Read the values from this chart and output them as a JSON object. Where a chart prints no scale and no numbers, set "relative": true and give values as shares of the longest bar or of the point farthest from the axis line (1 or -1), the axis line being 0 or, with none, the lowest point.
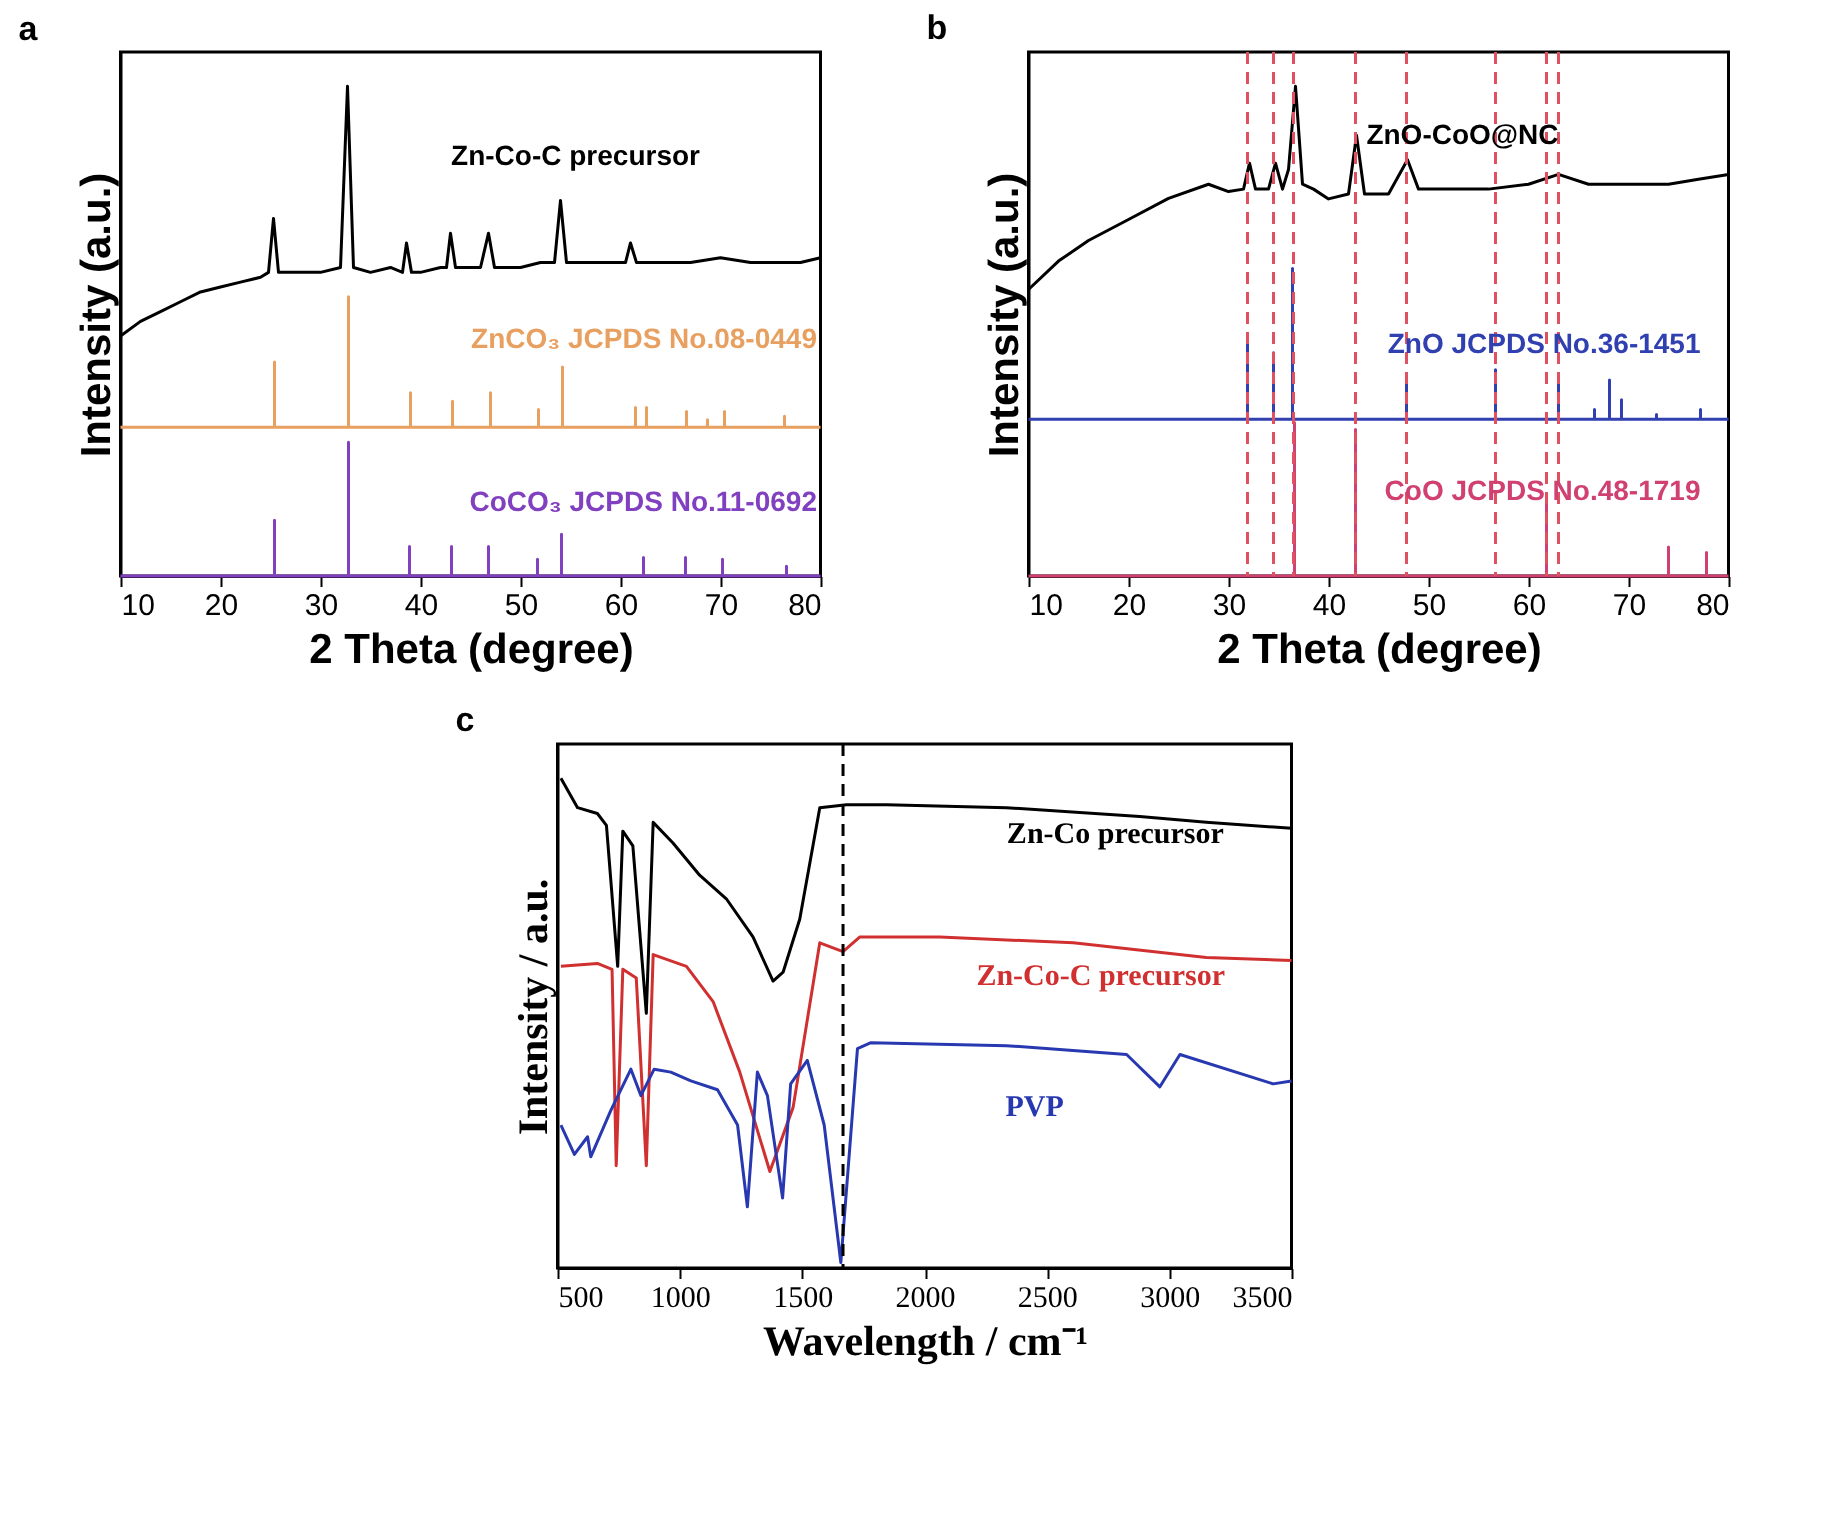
{
  "chart_data": [
    {
      "type": "line",
      "title": "a",
      "xlabel": "2 Theta (degree)",
      "ylabel": "Intensity (a.u.)",
      "relative": true,
      "xlim": [
        10,
        80
      ],
      "xticks": [
        10,
        20,
        30,
        40,
        50,
        60,
        70,
        80
      ],
      "series": [
        {
          "name": "Zn-Co-C precursor",
          "color": "#000000",
          "x": [
            10,
            12,
            14,
            16,
            18,
            20,
            22,
            24,
            24.8,
            25.3,
            25.8,
            28,
            30,
            32,
            32.7,
            33.3,
            35,
            37,
            38.2,
            38.6,
            39.1,
            40,
            42,
            42.6,
            43,
            43.5,
            46,
            46.8,
            47.4,
            50,
            52,
            53.4,
            54,
            54.6,
            58,
            60.5,
            61,
            61.6,
            64,
            67,
            70,
            73,
            76,
            78,
            80
          ],
          "values": [
            0.49,
            0.52,
            0.54,
            0.56,
            0.58,
            0.59,
            0.6,
            0.61,
            0.62,
            0.73,
            0.62,
            0.62,
            0.62,
            0.63,
            1.0,
            0.63,
            0.62,
            0.63,
            0.62,
            0.68,
            0.62,
            0.62,
            0.63,
            0.63,
            0.7,
            0.63,
            0.63,
            0.7,
            0.63,
            0.63,
            0.64,
            0.64,
            0.767,
            0.64,
            0.64,
            0.64,
            0.68,
            0.64,
            0.64,
            0.64,
            0.65,
            0.64,
            0.64,
            0.64,
            0.65
          ]
        },
        {
          "name": "ZnCO₃ JCPDS No.08-0449",
          "color": "#e8a060",
          "x": [
            10,
            25.4,
            25.4,
            25.4,
            32.8,
            32.8,
            32.8,
            39.0,
            39.0,
            39.0,
            43.2,
            43.2,
            43.2,
            47.0,
            47.0,
            47.0,
            51.8,
            51.8,
            51.8,
            54.2,
            54.2,
            54.2,
            61.5,
            61.5,
            61.5,
            62.6,
            62.6,
            62.6,
            66.6,
            66.6,
            66.6,
            68.7,
            68.7,
            68.7,
            70.4,
            70.4,
            70.4,
            76.4,
            76.4,
            76.4,
            80
          ],
          "values": [
            0.304,
            0.304,
            0.437,
            0.304,
            0.304,
            0.57,
            0.304,
            0.304,
            0.374,
            0.304,
            0.304,
            0.357,
            0.304,
            0.304,
            0.374,
            0.304,
            0.304,
            0.34,
            0.304,
            0.304,
            0.427,
            0.304,
            0.304,
            0.344,
            0.304,
            0.304,
            0.344,
            0.304,
            0.304,
            0.336,
            0.304,
            0.304,
            0.319,
            0.304,
            0.304,
            0.336,
            0.304,
            0.304,
            0.326,
            0.304,
            0.304
          ]
        },
        {
          "name": "CoCO₃ JCPDS No.11-0692",
          "color": "#8040c0",
          "x": [
            10,
            25.4,
            25.4,
            25.4,
            32.8,
            32.8,
            32.8,
            38.9,
            38.9,
            38.9,
            43.1,
            43.1,
            43.1,
            46.8,
            46.8,
            46.8,
            51.7,
            51.7,
            51.7,
            54.1,
            54.1,
            54.1,
            62.3,
            62.3,
            62.3,
            66.5,
            66.5,
            66.5,
            70.2,
            70.2,
            70.2,
            76.6,
            76.6,
            76.6,
            80
          ],
          "values": [
            0,
            0,
            0.114,
            0,
            0,
            0.273,
            0,
            0,
            0.06,
            0,
            0,
            0.06,
            0,
            0,
            0.06,
            0,
            0,
            0.034,
            0,
            0,
            0.085,
            0,
            0,
            0.038,
            0,
            0,
            0.038,
            0,
            0,
            0.034,
            0,
            0,
            0.02,
            0,
            0
          ]
        }
      ]
    },
    {
      "type": "line",
      "title": "b",
      "xlabel": "2 Theta (degree)",
      "ylabel": "Intensity (a.u.)",
      "relative": true,
      "xlim": [
        10,
        80
      ],
      "xticks": [
        10,
        20,
        30,
        40,
        50,
        60,
        70,
        80
      ],
      "series": [
        {
          "name": "ZnO-CoO@NC",
          "color": "#000000",
          "x": [
            10,
            13,
            16,
            20,
            24,
            28,
            30,
            31.5,
            32.1,
            32.7,
            34,
            34.7,
            35.4,
            36,
            36.7,
            37.4,
            38.5,
            40,
            42,
            42.8,
            43.6,
            46,
            47.9,
            49,
            52,
            56,
            60,
            63,
            66,
            70,
            74,
            77,
            80
          ],
          "values": [
            0.585,
            0.643,
            0.685,
            0.728,
            0.771,
            0.8,
            0.785,
            0.79,
            0.843,
            0.79,
            0.79,
            0.843,
            0.79,
            0.83,
            1.0,
            0.8,
            0.79,
            0.77,
            0.78,
            0.9,
            0.78,
            0.78,
            0.85,
            0.79,
            0.79,
            0.79,
            0.8,
            0.82,
            0.8,
            0.8,
            0.8,
            0.81,
            0.82
          ]
        },
        {
          "name": "ZnO JCPDS No.36-1451",
          "color": "#3040b0",
          "x": [
            10,
            31.9,
            31.9,
            31.9,
            34.5,
            34.5,
            34.5,
            36.4,
            36.4,
            36.4,
            47.8,
            47.8,
            47.8,
            56.7,
            56.7,
            56.7,
            63.0,
            63.0,
            63.0,
            66.6,
            66.6,
            66.6,
            68.1,
            68.1,
            68.1,
            69.3,
            69.3,
            69.3,
            72.8,
            72.8,
            72.8,
            77.2,
            77.2,
            77.2,
            80
          ],
          "values": [
            0.32,
            0.32,
            0.492,
            0.32,
            0.32,
            0.456,
            0.32,
            0.32,
            0.628,
            0.32,
            0.32,
            0.393,
            0.32,
            0.32,
            0.421,
            0.32,
            0.32,
            0.412,
            0.32,
            0.32,
            0.34,
            0.32,
            0.32,
            0.4,
            0.32,
            0.32,
            0.36,
            0.32,
            0.32,
            0.33,
            0.32,
            0.32,
            0.34,
            0.32,
            0.32
          ]
        },
        {
          "name": "CoO JCPDS No.48-1719",
          "color": "#d04070",
          "x": [
            10,
            36.6,
            36.6,
            36.6,
            42.7,
            42.7,
            42.7,
            61.8,
            61.8,
            61.8,
            74.0,
            74.0,
            74.0,
            77.8,
            77.8,
            77.8,
            80
          ],
          "values": [
            0,
            0,
            0.313,
            0,
            0,
            0.299,
            0,
            0,
            0.156,
            0,
            0,
            0.059,
            0,
            0,
            0.048,
            0,
            0
          ]
        }
      ],
      "ref_lines": [
        {
          "axis": "x",
          "value": 31.9,
          "color": "#e05060",
          "line_style": "dashed"
        },
        {
          "axis": "x",
          "value": 34.5,
          "color": "#e05060",
          "line_style": "dashed"
        },
        {
          "axis": "x",
          "value": 36.5,
          "color": "#e05060",
          "line_style": "dashed"
        },
        {
          "axis": "x",
          "value": 42.7,
          "color": "#e05060",
          "line_style": "dashed"
        },
        {
          "axis": "x",
          "value": 47.8,
          "color": "#e05060",
          "line_style": "dashed"
        },
        {
          "axis": "x",
          "value": 56.7,
          "color": "#e05060",
          "line_style": "dashed"
        },
        {
          "axis": "x",
          "value": 61.8,
          "color": "#e05060",
          "line_style": "dashed"
        },
        {
          "axis": "x",
          "value": 63.0,
          "color": "#e05060",
          "line_style": "dashed"
        }
      ]
    },
    {
      "type": "line",
      "title": "c",
      "xlabel": "Wavelength / cm⁻¹",
      "ylabel": "Intensity / a.u.",
      "relative": true,
      "xlim": [
        500,
        3500
      ],
      "xticks": [
        500,
        1000,
        1500,
        2000,
        2500,
        3000,
        3500
      ],
      "series": [
        {
          "name": "Zn-Co precursor",
          "color": "#000000",
          "x": [
            514,
            582,
            663,
            700,
            746,
            767,
            808,
            863,
            891,
            972,
            1081,
            1190,
            1299,
            1381,
            1422,
            1490,
            1572,
            1681,
            1845,
            2335,
            2880,
            3152,
            3500
          ],
          "values": [
            1.0,
            0.94,
            0.928,
            0.904,
            0.616,
            0.892,
            0.862,
            0.52,
            0.91,
            0.868,
            0.802,
            0.754,
            0.676,
            0.586,
            0.604,
            0.712,
            0.94,
            0.946,
            0.946,
            0.94,
            0.922,
            0.91,
            0.898
          ]
        },
        {
          "name": "Zn-Co-C precursor",
          "color": "#d03030",
          "x": [
            514,
            663,
            723,
            740,
            767,
            822,
            863,
            891,
            1027,
            1136,
            1245,
            1368,
            1463,
            1572,
            1667,
            1736,
            2063,
            2608,
            3152,
            3500
          ],
          "values": [
            0.616,
            0.622,
            0.61,
            0.209,
            0.61,
            0.592,
            0.209,
            0.64,
            0.616,
            0.544,
            0.4,
            0.197,
            0.328,
            0.664,
            0.646,
            0.676,
            0.676,
            0.664,
            0.634,
            0.628
          ]
        },
        {
          "name": "PVP",
          "color": "#2838b0",
          "x": [
            514,
            569,
            623,
            636,
            718,
            800,
            841,
            895,
            963,
            1045,
            1154,
            1236,
            1276,
            1317,
            1358,
            1420,
            1453,
            1521,
            1590,
            1658,
            1726,
            1781,
            2335,
            2826,
            2962,
            3044,
            3425,
            3500
          ],
          "values": [
            0.292,
            0.232,
            0.268,
            0.227,
            0.322,
            0.406,
            0.352,
            0.406,
            0.4,
            0.382,
            0.364,
            0.292,
            0.125,
            0.4,
            0.352,
            0.143,
            0.376,
            0.424,
            0.292,
            0.011,
            0.448,
            0.46,
            0.454,
            0.436,
            0.37,
            0.436,
            0.376,
            0.382
          ]
        }
      ],
      "ref_lines": [
        {
          "axis": "x",
          "value": 1667,
          "color": "#000000",
          "line_style": "dashed"
        }
      ]
    }
  ]
}
